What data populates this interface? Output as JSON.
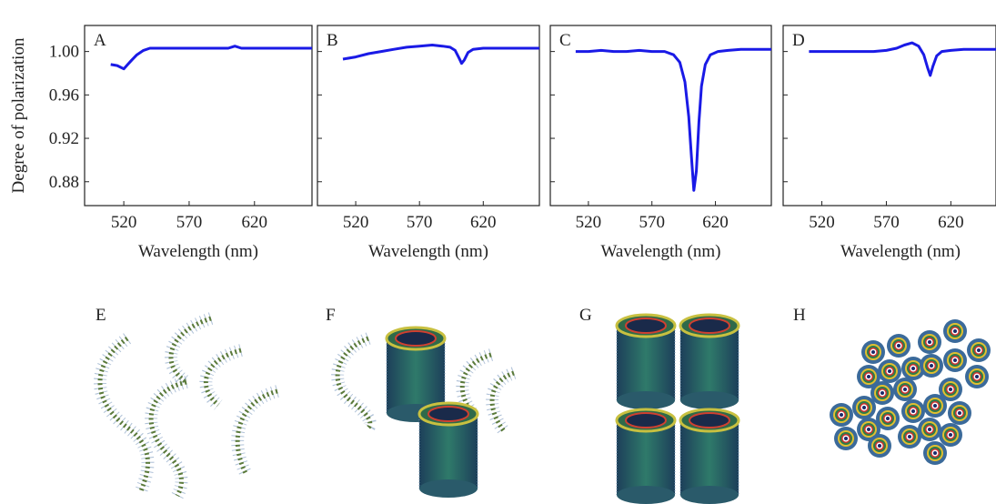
{
  "chart_data": [
    {
      "type": "line",
      "title": "A",
      "ylabel": "Degree of polarization",
      "xlabel": "Wavelength (nm)",
      "color": "#1a1ae6",
      "x": [
        510,
        515,
        520,
        523,
        526,
        530,
        535,
        540,
        550,
        560,
        570,
        580,
        590,
        600,
        605,
        610,
        620,
        630,
        640,
        650,
        664
      ],
      "values": [
        0.988,
        0.987,
        0.984,
        0.988,
        0.992,
        0.997,
        1.001,
        1.003,
        1.003,
        1.003,
        1.003,
        1.003,
        1.003,
        1.003,
        1.005,
        1.003,
        1.003,
        1.003,
        1.003,
        1.003,
        1.003
      ],
      "xlim": [
        490,
        664
      ],
      "ylim": [
        0.858,
        1.024
      ],
      "xticks": [
        520,
        570,
        620
      ],
      "yticks": [
        0.88,
        0.92,
        0.96,
        {
          "value": 1,
          "label": "1.00"
        }
      ]
    },
    {
      "type": "line",
      "title": "B",
      "xlabel": "Wavelength (nm)",
      "color": "#1a1ae6",
      "x": [
        510,
        520,
        530,
        540,
        550,
        560,
        570,
        580,
        588,
        594,
        598,
        601,
        603,
        605,
        608,
        612,
        620,
        630,
        640,
        650,
        664
      ],
      "values": [
        0.993,
        0.995,
        0.998,
        1.0,
        1.002,
        1.004,
        1.005,
        1.006,
        1.005,
        1.004,
        1.001,
        0.994,
        0.989,
        0.992,
        0.999,
        1.002,
        1.003,
        1.003,
        1.003,
        1.003,
        1.003
      ],
      "xlim": [
        490,
        664
      ],
      "ylim": [
        0.858,
        1.024
      ],
      "xticks": [
        520,
        570,
        620
      ],
      "yticks": [
        0.88,
        0.92,
        0.96,
        1
      ],
      "show_ytick_labels": false
    },
    {
      "type": "line",
      "title": "C",
      "xlabel": "Wavelength (nm)",
      "color": "#1a1ae6",
      "x": [
        510,
        520,
        530,
        540,
        550,
        560,
        570,
        580,
        587,
        592,
        596,
        599,
        601,
        603,
        605,
        607,
        609,
        612,
        616,
        622,
        630,
        640,
        650,
        664
      ],
      "values": [
        1.0,
        1.0,
        1.001,
        1.0,
        1.0,
        1.001,
        1.0,
        1.0,
        0.997,
        0.99,
        0.972,
        0.94,
        0.905,
        0.872,
        0.89,
        0.935,
        0.968,
        0.988,
        0.997,
        1.0,
        1.001,
        1.002,
        1.002,
        1.002
      ],
      "xlim": [
        490,
        664
      ],
      "ylim": [
        0.858,
        1.024
      ],
      "xticks": [
        520,
        570,
        620
      ],
      "yticks": [
        0.88,
        0.92,
        0.96,
        1
      ],
      "show_ytick_labels": false
    },
    {
      "type": "line",
      "title": "D",
      "xlabel": "Wavelength (nm)",
      "color": "#1a1ae6",
      "x": [
        510,
        520,
        530,
        540,
        550,
        560,
        570,
        578,
        584,
        590,
        595,
        599,
        602,
        604,
        606,
        609,
        613,
        620,
        630,
        640,
        655
      ],
      "values": [
        1.0,
        1.0,
        1.0,
        1.0,
        1.0,
        1.0,
        1.001,
        1.003,
        1.006,
        1.008,
        1.005,
        0.997,
        0.985,
        0.978,
        0.986,
        0.996,
        1.0,
        1.001,
        1.002,
        1.002,
        1.002
      ],
      "xlim": [
        490,
        655
      ],
      "ylim": [
        0.858,
        1.024
      ],
      "xticks": [
        520,
        570,
        620
      ],
      "yticks": [
        0.88,
        0.92,
        0.96,
        1
      ],
      "show_ytick_labels": false
    }
  ],
  "illustrations": [
    {
      "label": "E"
    },
    {
      "label": "F"
    },
    {
      "label": "G"
    },
    {
      "label": "H"
    }
  ]
}
